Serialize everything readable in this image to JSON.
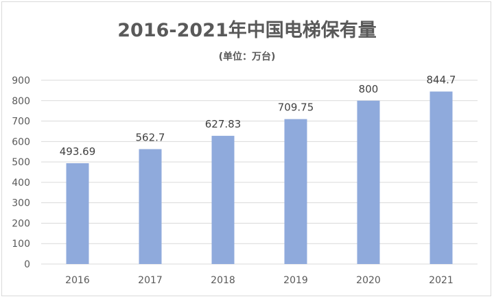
{
  "chart_data": {
    "type": "bar",
    "title": "2016-2021年中国电梯保有量",
    "subtitle": "(单位：万台)",
    "categories": [
      "2016",
      "2017",
      "2018",
      "2019",
      "2020",
      "2021"
    ],
    "values": [
      493.69,
      562.7,
      627.83,
      709.75,
      800,
      844.7
    ],
    "data_labels": [
      "493.69",
      "562.7",
      "627.83",
      "709.75",
      "800",
      "844.7"
    ],
    "ylim": [
      0,
      900
    ],
    "yticks": [
      0,
      100,
      200,
      300,
      400,
      500,
      600,
      700,
      800,
      900
    ],
    "grid": true,
    "bar_color": "#8faadc",
    "grid_color": "#d9d9d9"
  }
}
